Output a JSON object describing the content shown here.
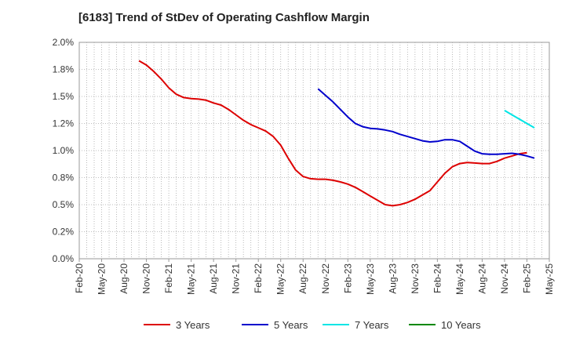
{
  "chart_data": {
    "type": "line",
    "title": "[6183]  Trend of StDev of Operating Cashflow Margin",
    "xlabel": "",
    "ylabel": "",
    "ylim": [
      0,
      2.0
    ],
    "y_ticks": [
      {
        "value": 0.0,
        "label": "0.0%"
      },
      {
        "value": 0.25,
        "label": "0.2%"
      },
      {
        "value": 0.5,
        "label": "0.5%"
      },
      {
        "value": 0.75,
        "label": "0.8%"
      },
      {
        "value": 1.0,
        "label": "1.0%"
      },
      {
        "value": 1.25,
        "label": "1.2%"
      },
      {
        "value": 1.5,
        "label": "1.5%"
      },
      {
        "value": 1.75,
        "label": "1.8%"
      },
      {
        "value": 2.0,
        "label": "2.0%"
      }
    ],
    "x_ticks": [
      "Feb-20",
      "May-20",
      "Aug-20",
      "Nov-20",
      "Feb-21",
      "May-21",
      "Aug-21",
      "Nov-21",
      "Feb-22",
      "May-22",
      "Aug-22",
      "Nov-22",
      "Feb-23",
      "May-23",
      "Aug-23",
      "Nov-23",
      "Feb-24",
      "May-24",
      "Aug-24",
      "Nov-24",
      "Feb-25",
      "May-25"
    ],
    "x_range": [
      "2020-02",
      "2025-05"
    ],
    "grid": true,
    "legend_position": "bottom",
    "series": [
      {
        "name": "3 Years",
        "color": "#dd0000",
        "points": [
          [
            "2020-10",
            1.83
          ],
          [
            "2020-11",
            1.79
          ],
          [
            "2020-12",
            1.73
          ],
          [
            "2021-01",
            1.66
          ],
          [
            "2021-02",
            1.58
          ],
          [
            "2021-03",
            1.52
          ],
          [
            "2021-04",
            1.49
          ],
          [
            "2021-05",
            1.48
          ],
          [
            "2021-06",
            1.475
          ],
          [
            "2021-07",
            1.465
          ],
          [
            "2021-08",
            1.44
          ],
          [
            "2021-09",
            1.42
          ],
          [
            "2021-10",
            1.38
          ],
          [
            "2021-11",
            1.33
          ],
          [
            "2021-12",
            1.28
          ],
          [
            "2022-01",
            1.24
          ],
          [
            "2022-02",
            1.21
          ],
          [
            "2022-03",
            1.18
          ],
          [
            "2022-04",
            1.13
          ],
          [
            "2022-05",
            1.05
          ],
          [
            "2022-06",
            0.93
          ],
          [
            "2022-07",
            0.82
          ],
          [
            "2022-08",
            0.76
          ],
          [
            "2022-09",
            0.74
          ],
          [
            "2022-10",
            0.735
          ],
          [
            "2022-11",
            0.735
          ],
          [
            "2022-12",
            0.725
          ],
          [
            "2023-01",
            0.71
          ],
          [
            "2023-02",
            0.69
          ],
          [
            "2023-03",
            0.66
          ],
          [
            "2023-04",
            0.62
          ],
          [
            "2023-05",
            0.58
          ],
          [
            "2023-06",
            0.54
          ],
          [
            "2023-07",
            0.5
          ],
          [
            "2023-08",
            0.49
          ],
          [
            "2023-09",
            0.5
          ],
          [
            "2023-10",
            0.52
          ],
          [
            "2023-11",
            0.55
          ],
          [
            "2023-12",
            0.59
          ],
          [
            "2024-01",
            0.63
          ],
          [
            "2024-02",
            0.71
          ],
          [
            "2024-03",
            0.79
          ],
          [
            "2024-04",
            0.85
          ],
          [
            "2024-05",
            0.88
          ],
          [
            "2024-06",
            0.89
          ],
          [
            "2024-07",
            0.885
          ],
          [
            "2024-08",
            0.88
          ],
          [
            "2024-09",
            0.88
          ],
          [
            "2024-10",
            0.9
          ],
          [
            "2024-11",
            0.93
          ],
          [
            "2024-12",
            0.95
          ],
          [
            "2025-01",
            0.97
          ],
          [
            "2025-02",
            0.98
          ]
        ]
      },
      {
        "name": "5 Years",
        "color": "#0000cc",
        "points": [
          [
            "2022-10",
            1.57
          ],
          [
            "2022-11",
            1.51
          ],
          [
            "2022-12",
            1.45
          ],
          [
            "2023-01",
            1.38
          ],
          [
            "2023-02",
            1.31
          ],
          [
            "2023-03",
            1.25
          ],
          [
            "2023-04",
            1.22
          ],
          [
            "2023-05",
            1.205
          ],
          [
            "2023-06",
            1.2
          ],
          [
            "2023-07",
            1.19
          ],
          [
            "2023-08",
            1.175
          ],
          [
            "2023-09",
            1.15
          ],
          [
            "2023-10",
            1.13
          ],
          [
            "2023-11",
            1.11
          ],
          [
            "2023-12",
            1.09
          ],
          [
            "2024-01",
            1.08
          ],
          [
            "2024-02",
            1.085
          ],
          [
            "2024-03",
            1.1
          ],
          [
            "2024-04",
            1.1
          ],
          [
            "2024-05",
            1.085
          ],
          [
            "2024-06",
            1.04
          ],
          [
            "2024-07",
            0.995
          ],
          [
            "2024-08",
            0.97
          ],
          [
            "2024-09",
            0.965
          ],
          [
            "2024-10",
            0.965
          ],
          [
            "2024-11",
            0.97
          ],
          [
            "2024-12",
            0.975
          ],
          [
            "2025-01",
            0.965
          ],
          [
            "2025-02",
            0.95
          ],
          [
            "2025-03",
            0.93
          ]
        ]
      },
      {
        "name": "7 Years",
        "color": "#00e5e5",
        "points": [
          [
            "2024-11",
            1.37
          ],
          [
            "2024-12",
            1.33
          ],
          [
            "2025-01",
            1.29
          ],
          [
            "2025-02",
            1.25
          ],
          [
            "2025-03",
            1.21
          ]
        ]
      },
      {
        "name": "10 Years",
        "color": "#008800",
        "points": []
      }
    ]
  }
}
